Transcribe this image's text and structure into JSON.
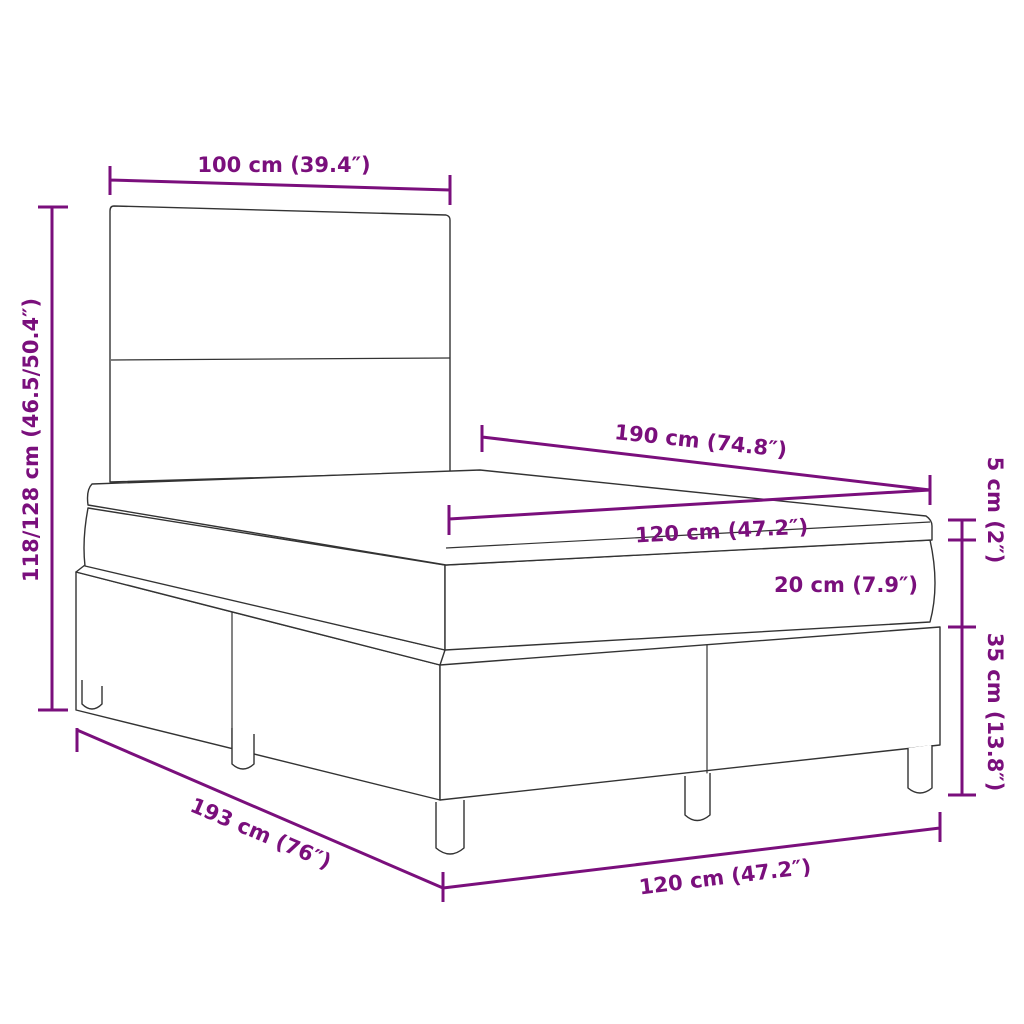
{
  "colors": {
    "dimension": "#7a0f7c",
    "outline": "#333333"
  },
  "dimensions": {
    "headboard_width": "100 cm (39.4″)",
    "total_height": "118/128 cm (46.5/50.4″)",
    "topper_length": "190 cm (74.8″)",
    "topper_width": "120 cm (47.2″)",
    "mattress_height": "20 cm (7.9″)",
    "topper_height": "5 cm (2″)",
    "base_height": "35 cm (13.8″)",
    "total_length": "193 cm (76″)",
    "total_width": "120 cm (47.2″)"
  }
}
